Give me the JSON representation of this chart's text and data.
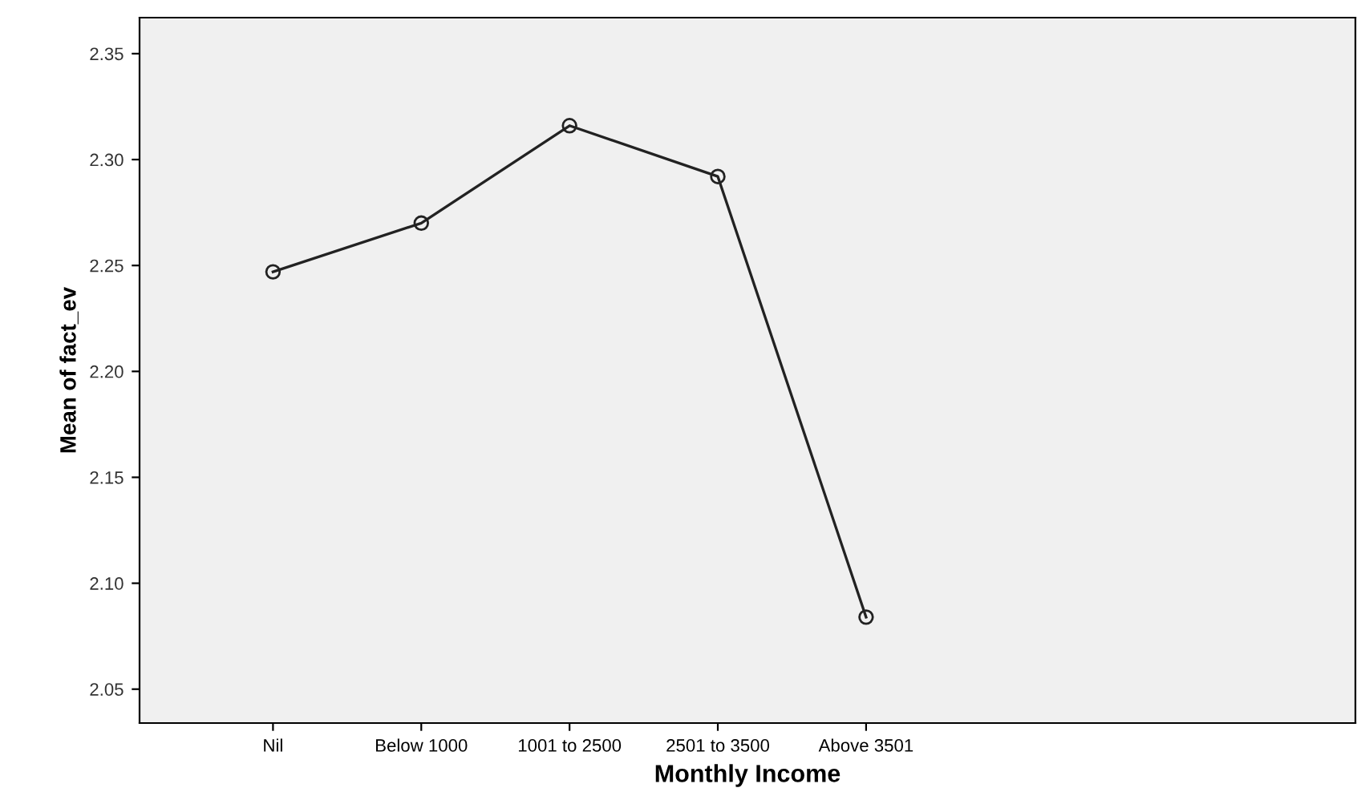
{
  "chart_data": {
    "type": "line",
    "xlabel": "Monthly Income",
    "ylabel": "Mean of fact_ev",
    "categories": [
      "Nil",
      "Below 1000",
      "1001 to 2500",
      "2501 to 3500",
      "Above 3501"
    ],
    "series": [
      {
        "color": "#222222",
        "values": [
          2.247,
          2.27,
          2.316,
          2.292,
          2.084
        ]
      }
    ],
    "ylim": [
      2.034,
      2.367
    ],
    "yticks": [
      {
        "value": 2.05,
        "label": "2.05"
      },
      {
        "value": 2.1,
        "label": "2.10"
      },
      {
        "value": 2.15,
        "label": "2.15"
      },
      {
        "value": 2.2,
        "label": "2.20"
      },
      {
        "value": 2.25,
        "label": "2.25"
      },
      {
        "value": 2.3,
        "label": "2.30"
      },
      {
        "value": 2.35,
        "label": "2.35"
      }
    ],
    "marker": "circle",
    "line_style": "solid"
  }
}
